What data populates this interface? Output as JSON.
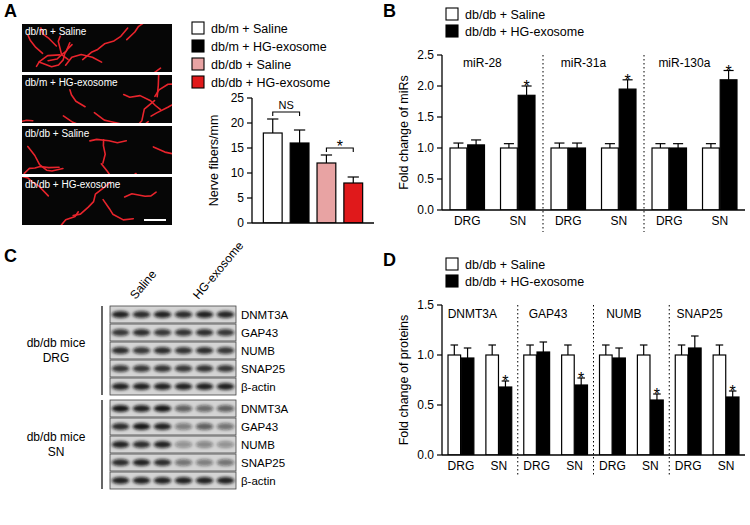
{
  "panel_labels": [
    "A",
    "B",
    "C",
    "D"
  ],
  "images": {
    "labels": [
      "db/m + Saline",
      "db/m + HG-exosome",
      "db/db + Saline",
      "db/db + HG-exosome"
    ]
  },
  "blot": {
    "lanes": [
      "Saline",
      "HG-exosome"
    ],
    "groups": [
      {
        "label": [
          "db/db mice",
          "DRG"
        ],
        "proteins": [
          "DNMT3A",
          "GAP43",
          "NUMB",
          "SNAP25",
          "β-actin"
        ]
      },
      {
        "label": [
          "db/db mice",
          "SN"
        ],
        "proteins": [
          "DNMT3A",
          "GAP43",
          "NUMB",
          "SNAP25",
          "β-actin"
        ]
      }
    ]
  },
  "chart_data": [
    {
      "type": "bar",
      "y_label": "Nerve fibers/mm",
      "categories": [
        null
      ],
      "series": [
        {
          "name": "db/m + Saline",
          "color": "#ffffff",
          "values": [
            18
          ],
          "errors": [
            2.8
          ]
        },
        {
          "name": "db/m + HG-exosome",
          "color": "#000000",
          "values": [
            16
          ],
          "errors": [
            2.6
          ]
        },
        {
          "name": "db/db + Saline",
          "color": "#e8a3a3",
          "values": [
            12
          ],
          "errors": [
            1.6
          ]
        },
        {
          "name": "db/db + HG-exosome",
          "color": "#e0191b",
          "values": [
            8
          ],
          "errors": [
            1.2
          ]
        }
      ],
      "ylim": [
        0,
        25
      ],
      "yticks": [
        0,
        5,
        10,
        15,
        20,
        25
      ],
      "tick_labels": "y",
      "annotations": [
        {
          "text": "NS",
          "series": [
            0,
            1
          ],
          "index": 0
        },
        {
          "text": "*",
          "series": [
            2,
            3
          ],
          "index": 0
        }
      ]
    },
    {
      "type": "bar",
      "y_label": "Fold change of miRs",
      "categories": [
        "DRG",
        "SN",
        "DRG",
        "SN",
        "DRG",
        "SN"
      ],
      "category_groups": [
        "miR-28",
        "miR-31a",
        "miR-130a"
      ],
      "series": [
        {
          "name": "db/db + Saline",
          "color": "#ffffff",
          "values": [
            1,
            1,
            1,
            1,
            1,
            1
          ],
          "errors": [
            0.08,
            0.07,
            0.08,
            0.07,
            0.07,
            0.07
          ]
        },
        {
          "name": "db/db + HG-exosome",
          "color": "#000000",
          "values": [
            1.05,
            1.85,
            1.0,
            1.95,
            1.0,
            2.1
          ],
          "errors": [
            0.08,
            0.15,
            0.08,
            0.15,
            0.07,
            0.15
          ]
        }
      ],
      "ylim": [
        0,
        2.5
      ],
      "yticks": [
        {
          "value": 0,
          "label": "0.0"
        },
        {
          "value": 0.5,
          "label": "0.5"
        },
        {
          "value": 1,
          "label": "1.0"
        },
        {
          "value": 1.5,
          "label": "1.5"
        },
        {
          "value": 2,
          "label": "2.0"
        },
        {
          "value": 2.5,
          "label": "2.5"
        }
      ],
      "annotations": [
        {
          "text": "*",
          "series": [
            1
          ],
          "index": 1
        },
        {
          "text": "*",
          "series": [
            1
          ],
          "index": 3
        },
        {
          "text": "*",
          "series": [
            1
          ],
          "index": 5
        }
      ]
    },
    {
      "type": "bar",
      "y_label": "Fold change of proteins",
      "categories": [
        "DRG",
        "SN",
        "DRG",
        "SN",
        "DRG",
        "SN",
        "DRG",
        "SN"
      ],
      "category_groups": [
        "DNMT3A",
        "GAP43",
        "NUMB",
        "SNAP25"
      ],
      "series": [
        {
          "name": "db/db + Saline",
          "color": "#ffffff",
          "values": [
            1,
            1,
            1,
            1,
            1,
            1,
            1,
            1
          ],
          "errors": [
            0.1,
            0.1,
            0.1,
            0.1,
            0.1,
            0.1,
            0.1,
            0.1
          ]
        },
        {
          "name": "db/db + HG-exosome",
          "color": "#000000",
          "values": [
            0.97,
            0.68,
            1.03,
            0.7,
            0.97,
            0.55,
            1.07,
            0.58
          ],
          "errors": [
            0.1,
            0.06,
            0.1,
            0.07,
            0.1,
            0.06,
            0.12,
            0.06
          ]
        }
      ],
      "ylim": [
        0,
        1.5
      ],
      "yticks": [
        {
          "value": 0,
          "label": "0.0"
        },
        {
          "value": 0.5,
          "label": "0.5"
        },
        {
          "value": 1,
          "label": "1.0"
        },
        {
          "value": 1.5,
          "label": "1.5"
        }
      ],
      "annotations": [
        {
          "text": "*",
          "series": [
            1
          ],
          "index": 1
        },
        {
          "text": "*",
          "series": [
            1
          ],
          "index": 3
        },
        {
          "text": "*",
          "series": [
            1
          ],
          "index": 5
        },
        {
          "text": "*",
          "series": [
            1
          ],
          "index": 7
        }
      ]
    }
  ]
}
